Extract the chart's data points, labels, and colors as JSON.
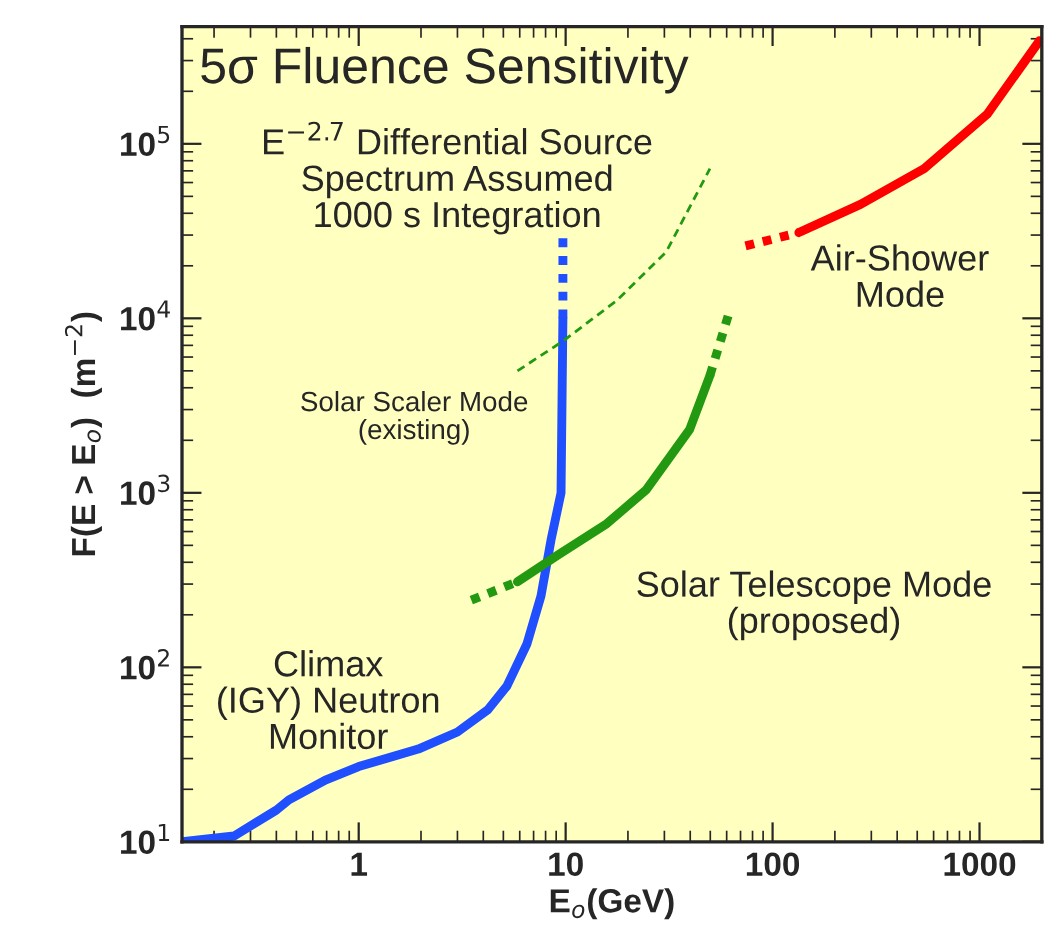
{
  "chart_data": {
    "type": "line",
    "title": "5σ Fluence Sensitivity",
    "xlabel": "E$_{o}$(GeV)",
    "ylabel": "F(E > E$_{o}$)  (m$^{−2}$)",
    "log": "xy",
    "xlim": [
      0.14,
      2000
    ],
    "ylim": [
      10,
      470000
    ],
    "xticks": [
      1,
      10,
      100,
      1000
    ],
    "yticks": [
      {
        "value": 10,
        "label": "10$^{1}$"
      },
      {
        "value": 100,
        "label": "10$^{2}$"
      },
      {
        "value": 1000,
        "label": "10$^{3}$"
      },
      {
        "value": 10000,
        "label": "10$^{4}$"
      },
      {
        "value": 100000,
        "label": "10$^{5}$"
      }
    ],
    "grid": false,
    "legend": false,
    "series": [
      {
        "color": "#1f4fff",
        "line_style": "solid",
        "x": [
          0.14,
          0.25,
          0.4,
          0.46,
          0.69,
          1.0,
          1.94,
          3.0,
          4.2,
          5.2,
          6.5,
          7.6,
          8.5,
          9.5,
          9.7
        ],
        "values": [
          10,
          10.8,
          15.2,
          17.4,
          22.6,
          27,
          34,
          42.6,
          57,
          78,
          136,
          256,
          537,
          1000,
          10000
        ]
      },
      {
        "color": "#1f4fff",
        "line_style": "dotted",
        "x": [
          9.7,
          9.7
        ],
        "values": [
          10000,
          29000
        ]
      },
      {
        "color": "#229911",
        "line_style": "dotted",
        "x": [
          3.5,
          5.85
        ],
        "values": [
          243,
          309
        ]
      },
      {
        "color": "#229911",
        "line_style": "solid",
        "x": [
          5.85,
          9.1,
          15.8,
          24.5,
          39.7,
          49.8
        ],
        "values": [
          309,
          437,
          665,
          1040,
          2300,
          4700
        ]
      },
      {
        "color": "#229911",
        "line_style": "dotted",
        "x": [
          49.8,
          62
        ],
        "values": [
          4700,
          11000
        ]
      },
      {
        "color": "#229911",
        "line_style": "dashed",
        "x": [
          5.85,
          9.7,
          17.6,
          30.6,
          49.8
        ],
        "values": [
          5000,
          7400,
          12600,
          24000,
          72000
        ]
      },
      {
        "color": "#ff0000",
        "line_style": "dotted",
        "x": [
          74,
          134
        ],
        "values": [
          26000,
          31000
        ]
      },
      {
        "color": "#ff0000",
        "line_style": "solid",
        "x": [
          134,
          266,
          540,
          1090,
          1950
        ],
        "values": [
          31000,
          45000,
          72000,
          148000,
          390000
        ]
      }
    ],
    "annotations": [
      "E$^{−2.7}$ Differential Source\nSpectrum Assumed\n1000 s Integration",
      "Air-Shower\nMode",
      "Solar Scaler Mode\n(existing)",
      "Solar Telescope Mode\n(proposed)",
      "Climax\n(IGY) Neutron\nMonitor"
    ]
  }
}
